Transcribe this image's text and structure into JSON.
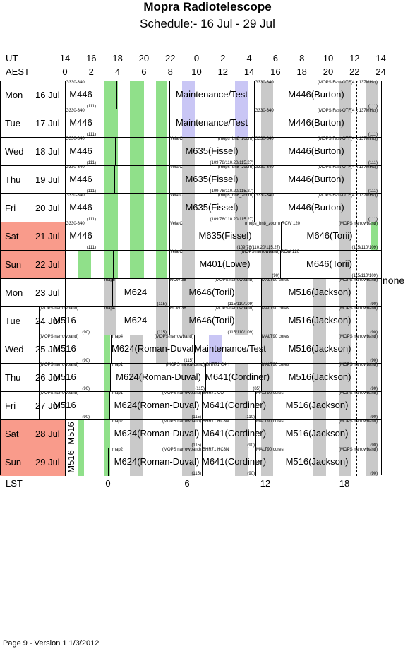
{
  "header": {
    "title": "Mopra Radiotelescope",
    "subtitle": "Schedule:- 16 Jul - 29 Jul"
  },
  "axes": {
    "ut_label": "UT",
    "aest_label": "AEST",
    "lst_label": "LST",
    "ut_ticks": [
      "14",
      "16",
      "18",
      "20",
      "22",
      "0",
      "2",
      "4",
      "6",
      "8",
      "10",
      "12",
      "14"
    ],
    "aest_ticks": [
      "0",
      "2",
      "4",
      "6",
      "8",
      "10",
      "12",
      "14",
      "16",
      "18",
      "20",
      "22",
      "24"
    ],
    "lst_ticks": [
      "0",
      "6",
      "12",
      "18"
    ]
  },
  "note_right": "none",
  "footer": "Page 9 - Version 1  1/3/2012",
  "days": [
    {
      "name": "Mon",
      "date": "16 Jul",
      "weekend": false
    },
    {
      "name": "Tue",
      "date": "17 Jul",
      "weekend": false
    },
    {
      "name": "Wed",
      "date": "18 Jul",
      "weekend": false
    },
    {
      "name": "Thu",
      "date": "19 Jul",
      "weekend": false
    },
    {
      "name": "Fri",
      "date": "20 Jul",
      "weekend": false
    },
    {
      "name": "Sat",
      "date": "21 Jul",
      "weekend": true
    },
    {
      "name": "Sun",
      "date": "22 Jul",
      "weekend": true
    },
    {
      "name": "Mon",
      "date": "23 Jul",
      "weekend": false
    },
    {
      "name": "Tue",
      "date": "24 Jul",
      "weekend": false
    },
    {
      "name": "Wed",
      "date": "25 Jul",
      "weekend": false
    },
    {
      "name": "Thu",
      "date": "26 Jul",
      "weekend": false
    },
    {
      "name": "Fri",
      "date": "27 Jul",
      "weekend": false
    },
    {
      "name": "Sat",
      "date": "28 Jul",
      "weekend": true
    },
    {
      "name": "Sun",
      "date": "29 Jul",
      "weekend": true
    }
  ],
  "blocks": [
    [
      {
        "code": "M446",
        "tl": "G330-340",
        "br": "(111)"
      },
      {
        "code": "Maintenance/Test"
      },
      {
        "code": "M446(Burton)",
        "tl": "G330-340",
        "tr": "(MOPS Fast-OTF(4 x 137MHz))",
        "br": "(111)"
      }
    ],
    [
      {
        "code": "M446",
        "tl": "G330-340",
        "br": "(111)"
      },
      {
        "code": "Maintenance/Test"
      },
      {
        "code": "M446(Burton)",
        "tl": "G330-340",
        "tr": "(MOPS Fast-OTF(4 x 137MHz))",
        "br": "(111)"
      }
    ],
    [
      {
        "code": "M446",
        "tl": "G330-340",
        "br": "(111)"
      },
      {
        "code": "M635(Fissel)",
        "tl": "Vela C",
        "tr": "(mops_bn8_zoom)",
        "br": "(109.78/110.20/115.27)"
      },
      {
        "code": "M446(Burton)",
        "tl": "G330-340",
        "tr": "(MOPS Fast-OTF(4 x 137MHz))",
        "br": "(111)"
      }
    ],
    [
      {
        "code": "M446",
        "tl": "G330-340",
        "br": "(111)"
      },
      {
        "code": "M635(Fissel)",
        "tl": "Vela C",
        "tr": "(mops_bn8_zoom)",
        "br": "(109.78/110.20/115.27)"
      },
      {
        "code": "M446(Burton)",
        "tl": "G330-340",
        "tr": "(MOPS Fast-OTF(4 x 137MHz))",
        "br": "(111)"
      }
    ],
    [
      {
        "code": "M446",
        "tl": "G330-340",
        "br": "(111)"
      },
      {
        "code": "M635(Fissel)",
        "tl": "Vela C",
        "tr": "(mops_bn8_zoom)",
        "br": "(109.78/110.20/115.27)"
      },
      {
        "code": "M446(Burton)",
        "tl": "G330-340",
        "tr": "(MOPS Fast-OTF(4 x 137MHz))",
        "br": "(111)"
      }
    ],
    [
      {
        "code": "M446",
        "tl": "G330-340",
        "br": "(111)"
      },
      {
        "code": "M635(Fissel)",
        "tl": "Vela C",
        "tr": "(mops_bn8_zoom)",
        "br": "(109.78/110.20/115.27)"
      },
      {
        "code": "M646(Torii)",
        "tl": "RCW 120",
        "tr": "(MOPS narrowband)",
        "br": "(115/110/109)"
      }
    ],
    [
      {
        "code": "M401(Lowe)",
        "tl": "Vela C",
        "tr": "(MOPS narrowband)",
        "br": "(90)"
      },
      {
        "code": "M646(Torii)",
        "tl": "RCW 120",
        "br": "(115/110/109)"
      }
    ],
    [
      {
        "code": "M624",
        "tl": "map5",
        "br": "(115)"
      },
      {
        "code": "M646(Torii)",
        "tl": "RCW 38",
        "tr": "(MOPS narrowband)",
        "br": "(115/110/109)"
      },
      {
        "code": "M516(Jackson)",
        "tl": "MALT90 cores",
        "tr": "(MOPS narrowband)",
        "br": "(90)"
      }
    ],
    [
      {
        "code": "M516",
        "tl": "(MOPS narrowband)",
        "br": "(90)"
      },
      {
        "code": "M624",
        "tl": "map4",
        "br": "(115)"
      },
      {
        "code": "M646(Torii)",
        "tl": "RCW 38",
        "tr": "(MOPS narrowband)",
        "br": "(115/110/109)"
      },
      {
        "code": "M516(Jackson)",
        "tl": "MALT90 cores",
        "tr": "(MOPS narrowband)",
        "br": "(90)"
      }
    ],
    [
      {
        "code": "M516",
        "tl": "(MOPS narrowband)",
        "br": "(90)"
      },
      {
        "code": "M624(Roman-Duval)",
        "tl": "map4",
        "tr": "(MOPS narrowband)",
        "br": "(115)"
      },
      {
        "code": "Maintenance/Test"
      },
      {
        "code": "M516(Jackson)",
        "tl": "MALT90 cores",
        "tr": "(MOPS narrowband)",
        "br": "(90)"
      }
    ],
    [
      {
        "code": "M516",
        "tl": "(MOPS narrowband)",
        "br": "(90)"
      },
      {
        "code": "M624(Roman-Duval)",
        "tl": "map1",
        "tr": "(MOPS narrowband)",
        "br": "(115)"
      },
      {
        "code": "M641(Cordiner)",
        "tl": "BHR71 C4H",
        "br": "(85)"
      },
      {
        "code": "M516(Jackson)",
        "tl": "MALT90 cores",
        "tr": "(MOPS narrowband)",
        "br": "(90)"
      }
    ],
    [
      {
        "code": "M516",
        "tl": "(MOPS narrowband)",
        "br": "(90)"
      },
      {
        "code": "M624(Roman-Duval)",
        "tl": "map1",
        "tr": "(MOPS narrowband)",
        "br": "(115)"
      },
      {
        "code": "M641(Cordiner)",
        "tl": "BHR71 CO",
        "br": "(110)"
      },
      {
        "code": "M516(Jackson)",
        "tl": "MALT90 cores",
        "tr": "(MOPS narrowband)",
        "br": "(90)"
      }
    ],
    [
      {
        "code": "M516"
      },
      {
        "code": "M624(Roman-Duval)",
        "tl": "map2",
        "tr": "(MOPS narrowband)",
        "br": "(115)"
      },
      {
        "code": "M641(Cordiner)",
        "tl": "BHR71 HC3N",
        "br": "(90)"
      },
      {
        "code": "M516(Jackson)",
        "tl": "MALT90 cores",
        "tr": "(MOPS narrowband)",
        "br": "(90)"
      }
    ],
    [
      {
        "code": "M516"
      },
      {
        "code": "M624(Roman-Duval)",
        "tl": "map2",
        "tr": "(MOPS narrowband)",
        "br": "(115)"
      },
      {
        "code": "M641(Cordiner)",
        "tl": "BHR71 HC3N",
        "br": "(90)"
      },
      {
        "code": "M516(Jackson)",
        "tl": "MALT90 cores",
        "tr": "(MOPS narrowband)",
        "br": "(90)"
      }
    ]
  ]
}
